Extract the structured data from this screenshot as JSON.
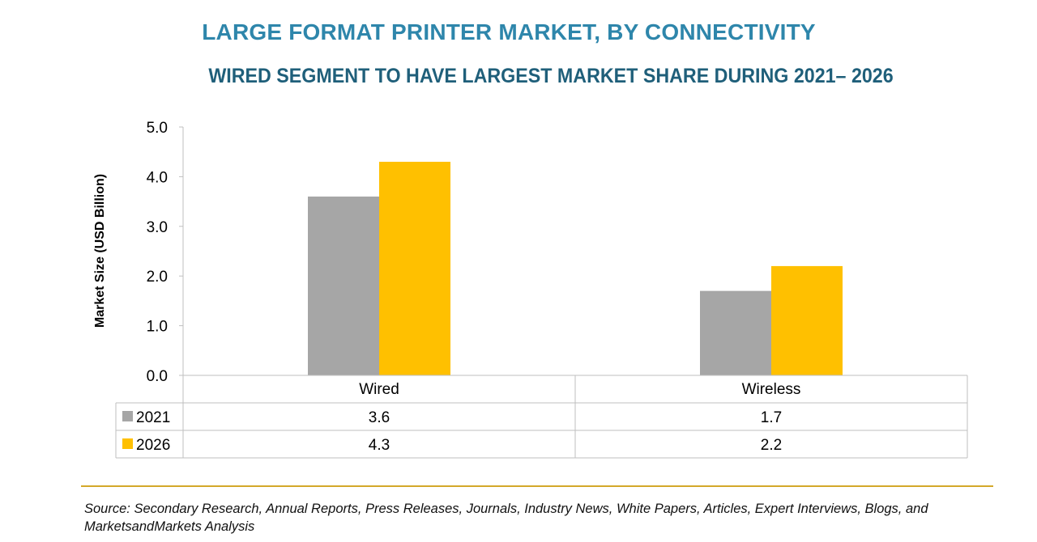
{
  "title": "LARGE FORMAT PRINTER MARKET, BY CONNECTIVITY",
  "subtitle": "WIRED SEGMENT TO HAVE LARGEST MARKET SHARE DURING 2021– 2026",
  "source": "Source: Secondary Research, Annual Reports, Press Releases, Journals, Industry News, White Papers, Articles, Expert Interviews, Blogs, and MarketsandMarkets Analysis",
  "colors": {
    "2021": "#A6A6A6",
    "2026": "#FFC000",
    "title": "#2E86AB",
    "subtitle": "#1F5F7A",
    "rule": "#D4A82A"
  },
  "chart_data": {
    "type": "bar",
    "ylabel": "Market Size (USD Billion)",
    "xlabel": "",
    "ylim": [
      0,
      5
    ],
    "yticks": [
      "0.0",
      "1.0",
      "2.0",
      "3.0",
      "4.0",
      "5.0"
    ],
    "categories": [
      "Wired",
      "Wireless"
    ],
    "series": [
      {
        "name": "2021",
        "values": [
          3.6,
          1.7
        ],
        "labels": [
          "3.6",
          "1.7"
        ]
      },
      {
        "name": "2026",
        "values": [
          4.3,
          2.2
        ],
        "labels": [
          "4.3",
          "2.2"
        ]
      }
    ],
    "grid": false,
    "legend": "data table"
  }
}
